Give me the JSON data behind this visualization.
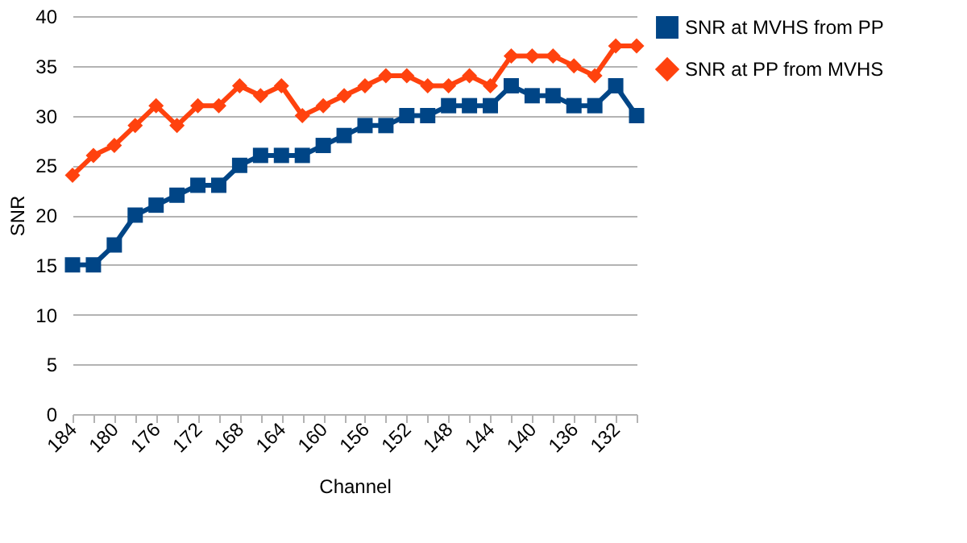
{
  "chart_data": {
    "type": "line",
    "xlabel": "Channel",
    "ylabel": "SNR",
    "categories": [
      "184",
      null,
      "180",
      null,
      "176",
      null,
      "172",
      null,
      "168",
      null,
      "164",
      null,
      "160",
      null,
      "156",
      null,
      "152",
      null,
      "148",
      null,
      "144",
      null,
      "140",
      null,
      "136",
      null,
      "132",
      null
    ],
    "series": [
      {
        "name": "SNR at MVHS from PP",
        "color": "#004586",
        "marker": "square",
        "values": [
          15,
          15,
          17,
          20,
          21,
          22,
          23,
          23,
          25,
          26,
          26,
          26,
          27,
          28,
          29,
          29,
          30,
          30,
          31,
          31,
          31,
          33,
          32,
          32,
          31,
          31,
          33,
          30
        ]
      },
      {
        "name": "SNR at PP from MVHS",
        "color": "#ff420e",
        "marker": "diamond",
        "values": [
          24,
          26,
          27,
          29,
          31,
          29,
          31,
          31,
          33,
          32,
          33,
          30,
          31,
          32,
          33,
          34,
          34,
          33,
          33,
          34,
          33,
          36,
          36,
          36,
          35,
          34,
          37,
          37
        ]
      }
    ],
    "ylim": [
      0,
      40
    ],
    "yticks": [
      0,
      5,
      10,
      15,
      20,
      25,
      30,
      35,
      40
    ],
    "grid": "y",
    "legend": "right"
  }
}
